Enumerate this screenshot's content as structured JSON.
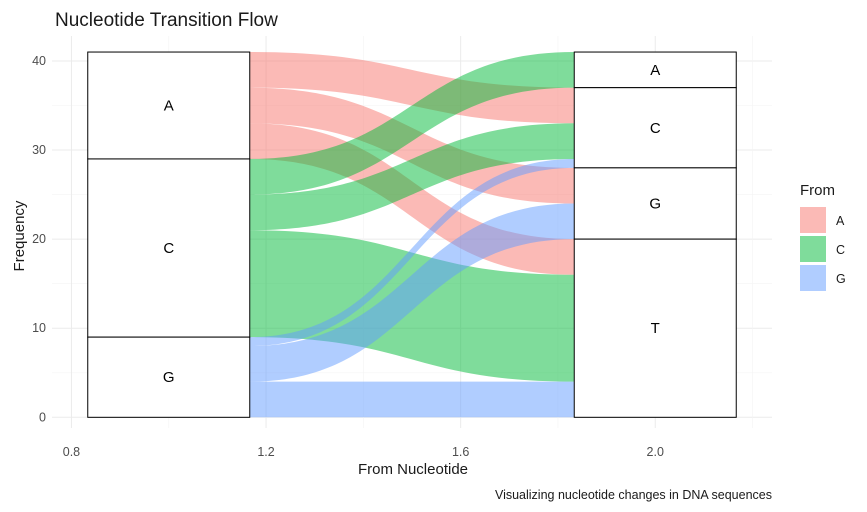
{
  "chart_data": {
    "type": "alluvial",
    "title": "Nucleotide Transition Flow",
    "xlabel": "From Nucleotide",
    "ylabel": "Frequency",
    "caption": "Visualizing nucleotide changes in DNA sequences",
    "xlim": [
      0.76,
      2.24
    ],
    "ylim": [
      -1.2,
      42.8
    ],
    "x_ticks": [
      0.8,
      1.2,
      1.6,
      2.0
    ],
    "y_ticks": [
      0,
      10,
      20,
      30,
      40
    ],
    "grid": true,
    "stratum_width": 0.333,
    "left_axis": {
      "position": 1,
      "strata": [
        {
          "label": "A",
          "value": 12
        },
        {
          "label": "C",
          "value": 20
        },
        {
          "label": "G",
          "value": 9
        }
      ]
    },
    "right_axis": {
      "position": 2,
      "strata": [
        {
          "label": "A",
          "value": 4
        },
        {
          "label": "C",
          "value": 9
        },
        {
          "label": "G",
          "value": 8
        },
        {
          "label": "T",
          "value": 20
        }
      ]
    },
    "flows": [
      {
        "from": "A",
        "to": "C",
        "value": 4
      },
      {
        "from": "A",
        "to": "G",
        "value": 4
      },
      {
        "from": "A",
        "to": "T",
        "value": 4
      },
      {
        "from": "C",
        "to": "A",
        "value": 4
      },
      {
        "from": "C",
        "to": "C",
        "value": 4
      },
      {
        "from": "C",
        "to": "T",
        "value": 12
      },
      {
        "from": "G",
        "to": "C",
        "value": 1
      },
      {
        "from": "G",
        "to": "G",
        "value": 4
      },
      {
        "from": "G",
        "to": "T",
        "value": 4
      }
    ],
    "legend": {
      "title": "From",
      "position": "right",
      "items": [
        {
          "label": "A",
          "color": "#F8766D"
        },
        {
          "label": "C",
          "color": "#00BA38"
        },
        {
          "label": "G",
          "color": "#619CFF"
        }
      ]
    }
  }
}
